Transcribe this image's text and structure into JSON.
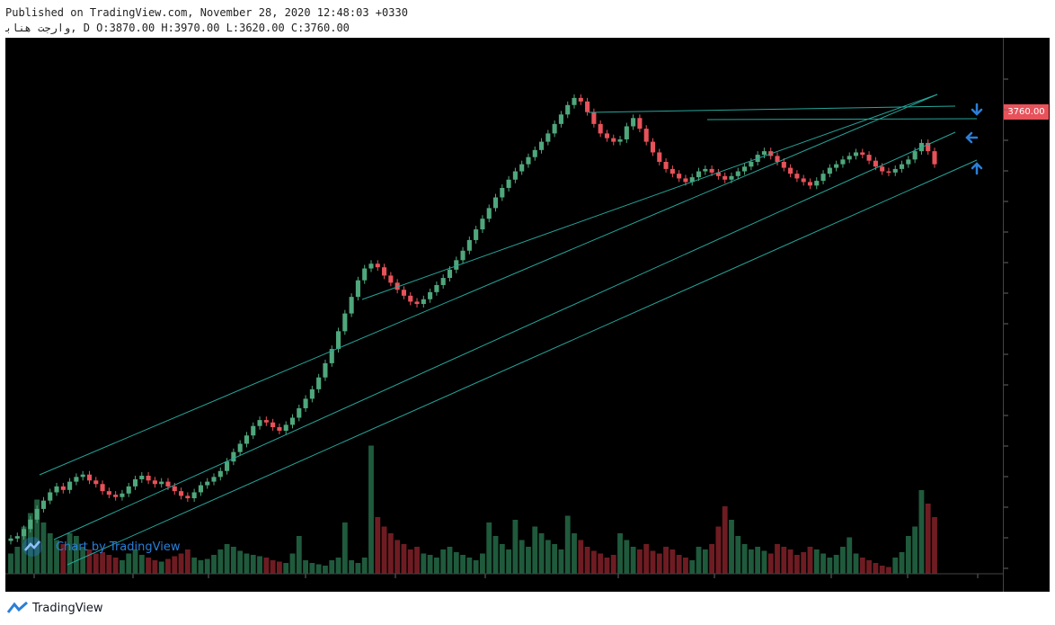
{
  "header": {
    "published_line": "Published on TradingView.com, November 28, 2020 12:48:03 +0330",
    "symbol_line": "ﻭﺍﺭﺟﺖ ﻫﻨﺎﺑ, D O:3870.00 H:3970.00 L:3620.00 C:3760.00"
  },
  "price_label": "3760.00",
  "watermark": "Chart by TradingView",
  "footer": {
    "brand": "TradingView"
  },
  "colors": {
    "up": "#4fa77c",
    "down": "#e8525a",
    "up_volume": "#1f5a3c",
    "down_volume": "#6e1c22",
    "trendline": "#26a69a",
    "arrow": "#2a7fd8",
    "background": "#000000"
  },
  "icons": [
    "tradingview-logo-icon",
    "arrow-down-icon",
    "arrow-left-icon",
    "arrow-up-icon"
  ],
  "chart_data": {
    "type": "candlestick",
    "title": "",
    "xlabel": "",
    "ylabel": "",
    "last_bar": {
      "open": 3870,
      "high": 3970,
      "low": 3620,
      "close": 3760
    },
    "ylim": [
      500,
      4600
    ],
    "closes": [
      600,
      620,
      680,
      760,
      850,
      920,
      990,
      1040,
      1010,
      1080,
      1120,
      1140,
      1090,
      1060,
      1000,
      970,
      950,
      980,
      1040,
      1100,
      1130,
      1090,
      1060,
      1080,
      1040,
      1000,
      960,
      940,
      990,
      1050,
      1080,
      1120,
      1170,
      1250,
      1330,
      1400,
      1470,
      1550,
      1600,
      1580,
      1540,
      1510,
      1560,
      1620,
      1700,
      1780,
      1860,
      1960,
      2080,
      2200,
      2350,
      2500,
      2640,
      2780,
      2880,
      2920,
      2890,
      2820,
      2760,
      2700,
      2650,
      2600,
      2580,
      2620,
      2680,
      2740,
      2800,
      2870,
      2950,
      3030,
      3120,
      3210,
      3300,
      3390,
      3480,
      3560,
      3630,
      3700,
      3760,
      3820,
      3880,
      3950,
      4020,
      4100,
      4180,
      4260,
      4320,
      4290,
      4200,
      4100,
      4020,
      3980,
      3950,
      3970,
      4080,
      4150,
      4060,
      3950,
      3860,
      3780,
      3720,
      3680,
      3640,
      3610,
      3650,
      3700,
      3720,
      3690,
      3660,
      3630,
      3660,
      3700,
      3740,
      3780,
      3840,
      3870,
      3830,
      3780,
      3730,
      3680,
      3640,
      3610,
      3580,
      3620,
      3680,
      3730,
      3760,
      3800,
      3830,
      3860,
      3840,
      3790,
      3740,
      3700,
      3690,
      3720,
      3760,
      3800,
      3870,
      3940,
      3870,
      3760
    ],
    "volumes": [
      0.15,
      0.2,
      0.35,
      0.45,
      0.55,
      0.38,
      0.3,
      0.25,
      0.22,
      0.3,
      0.28,
      0.2,
      0.18,
      0.15,
      0.16,
      0.14,
      0.12,
      0.1,
      0.15,
      0.18,
      0.14,
      0.12,
      0.1,
      0.09,
      0.11,
      0.13,
      0.15,
      0.18,
      0.12,
      0.1,
      0.11,
      0.14,
      0.18,
      0.22,
      0.2,
      0.17,
      0.15,
      0.14,
      0.13,
      0.12,
      0.1,
      0.09,
      0.08,
      0.15,
      0.28,
      0.1,
      0.08,
      0.07,
      0.06,
      0.1,
      0.12,
      0.38,
      0.1,
      0.08,
      0.12,
      0.95,
      0.42,
      0.35,
      0.3,
      0.25,
      0.22,
      0.18,
      0.2,
      0.15,
      0.14,
      0.12,
      0.18,
      0.2,
      0.16,
      0.14,
      0.12,
      0.1,
      0.15,
      0.38,
      0.28,
      0.22,
      0.18,
      0.4,
      0.25,
      0.2,
      0.35,
      0.3,
      0.25,
      0.22,
      0.18,
      0.43,
      0.3,
      0.25,
      0.2,
      0.17,
      0.15,
      0.12,
      0.14,
      0.3,
      0.25,
      0.2,
      0.18,
      0.22,
      0.17,
      0.15,
      0.2,
      0.18,
      0.14,
      0.12,
      0.1,
      0.2,
      0.18,
      0.22,
      0.35,
      0.5,
      0.4,
      0.28,
      0.22,
      0.18,
      0.2,
      0.17,
      0.15,
      0.22,
      0.2,
      0.18,
      0.14,
      0.16,
      0.2,
      0.18,
      0.15,
      0.12,
      0.14,
      0.2,
      0.27,
      0.15,
      0.12,
      0.1,
      0.08,
      0.06,
      0.05,
      0.12,
      0.16,
      0.28,
      0.35,
      0.62,
      0.52,
      0.42
    ]
  }
}
